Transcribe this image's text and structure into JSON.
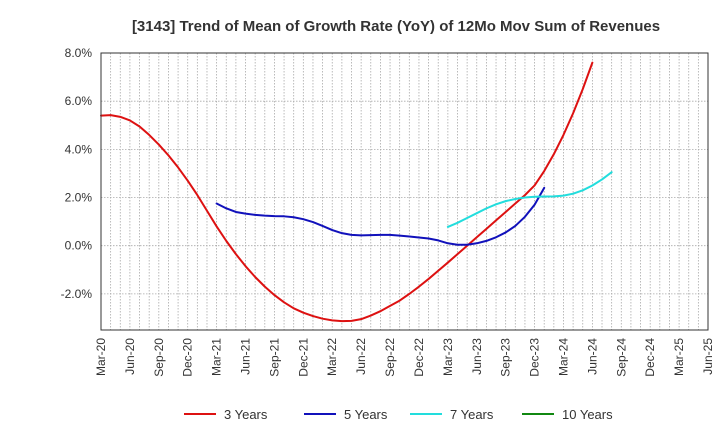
{
  "chart_data": {
    "type": "line",
    "title": "[3143]  Trend of Mean of Growth Rate (YoY) of 12Mo Mov Sum of Revenues",
    "xlabel": "",
    "ylabel": "",
    "ylim": [
      -3.5,
      8.0
    ],
    "y_ticks": [
      8.0,
      6.0,
      4.0,
      2.0,
      0.0,
      -2.0
    ],
    "y_tick_labels": [
      "8.0%",
      "6.0%",
      "4.0%",
      "2.0%",
      "0.0%",
      "-2.0%"
    ],
    "x_tick_labels": [
      "Mar-20",
      "Jun-20",
      "Sep-20",
      "Dec-20",
      "Mar-21",
      "Jun-21",
      "Sep-21",
      "Dec-21",
      "Mar-22",
      "Jun-22",
      "Sep-22",
      "Dec-22",
      "Mar-23",
      "Jun-23",
      "Sep-23",
      "Dec-23",
      "Mar-24",
      "Jun-24",
      "Sep-24",
      "Dec-24",
      "Mar-25",
      "Jun-25"
    ],
    "grid": true,
    "legend_position": "bottom",
    "series": [
      {
        "name": "3 Years",
        "color": "#dd1111",
        "start_index": 0,
        "values": [
          5.4,
          5.42,
          5.35,
          5.2,
          4.95,
          4.6,
          4.2,
          3.75,
          3.25,
          2.7,
          2.1,
          1.45,
          0.8,
          0.2,
          -0.35,
          -0.85,
          -1.3,
          -1.7,
          -2.05,
          -2.35,
          -2.6,
          -2.78,
          -2.92,
          -3.03,
          -3.1,
          -3.13,
          -3.12,
          -3.05,
          -2.9,
          -2.72,
          -2.5,
          -2.28,
          -2.0,
          -1.7,
          -1.38,
          -1.04,
          -0.7,
          -0.35,
          0.0,
          0.35,
          0.7,
          1.05,
          1.4,
          1.75,
          2.1,
          2.5,
          3.1,
          3.8,
          4.6,
          5.5,
          6.5,
          7.6
        ]
      },
      {
        "name": "5 Years",
        "color": "#1111bb",
        "start_index": 12,
        "values": [
          1.75,
          1.55,
          1.4,
          1.33,
          1.28,
          1.25,
          1.23,
          1.22,
          1.18,
          1.1,
          0.98,
          0.82,
          0.65,
          0.52,
          0.45,
          0.43,
          0.44,
          0.45,
          0.45,
          0.42,
          0.38,
          0.34,
          0.3,
          0.22,
          0.1,
          0.04,
          0.04,
          0.1,
          0.2,
          0.35,
          0.55,
          0.82,
          1.2,
          1.7,
          2.4
        ]
      },
      {
        "name": "7 Years",
        "color": "#22dddd",
        "start_index": 36,
        "values": [
          0.78,
          0.95,
          1.15,
          1.35,
          1.55,
          1.72,
          1.85,
          1.94,
          2.0,
          2.03,
          2.04,
          2.05,
          2.08,
          2.16,
          2.3,
          2.5,
          2.75,
          3.05
        ]
      },
      {
        "name": "10 Years",
        "color": "#118811",
        "start_index": 0,
        "values": []
      }
    ]
  }
}
